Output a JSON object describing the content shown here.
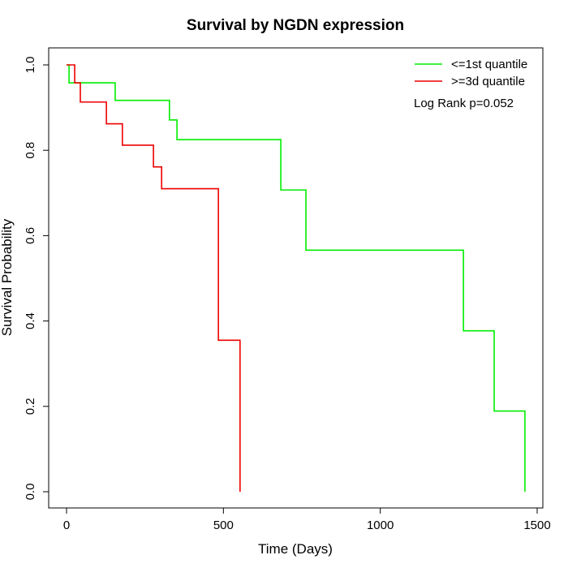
{
  "chart_data": {
    "type": "line",
    "title": "Survival by NGDN expression",
    "xlabel": "Time (Days)",
    "ylabel": "Survival Probability",
    "xlim": [
      0,
      1500
    ],
    "ylim": [
      0,
      1
    ],
    "xticks": [
      0,
      500,
      1000,
      1500
    ],
    "yticks": [
      0.0,
      0.2,
      0.4,
      0.6,
      0.8,
      1.0
    ],
    "xtick_labels": [
      "0",
      "500",
      "1000",
      "1500"
    ],
    "ytick_labels": [
      "0.0",
      "0.2",
      "0.4",
      "0.6",
      "0.8",
      "1.0"
    ],
    "legend_position": "top-right",
    "annotation": "Log Rank p=0.052",
    "series": [
      {
        "name": "<=1st quantile",
        "color": "#00ee00",
        "x": [
          0,
          8,
          155,
          328,
          352,
          683,
          763,
          1265,
          1363,
          1461
        ],
        "y": [
          1.0,
          0.958,
          0.917,
          0.871,
          0.825,
          0.707,
          0.566,
          0.377,
          0.189,
          0.0
        ]
      },
      {
        "name": ">=3d quantile",
        "color": "#ee0000",
        "x": [
          0,
          26,
          44,
          127,
          178,
          277,
          303,
          484,
          553
        ],
        "y": [
          1.0,
          0.958,
          0.913,
          0.862,
          0.812,
          0.761,
          0.71,
          0.355,
          0.0
        ]
      }
    ]
  }
}
